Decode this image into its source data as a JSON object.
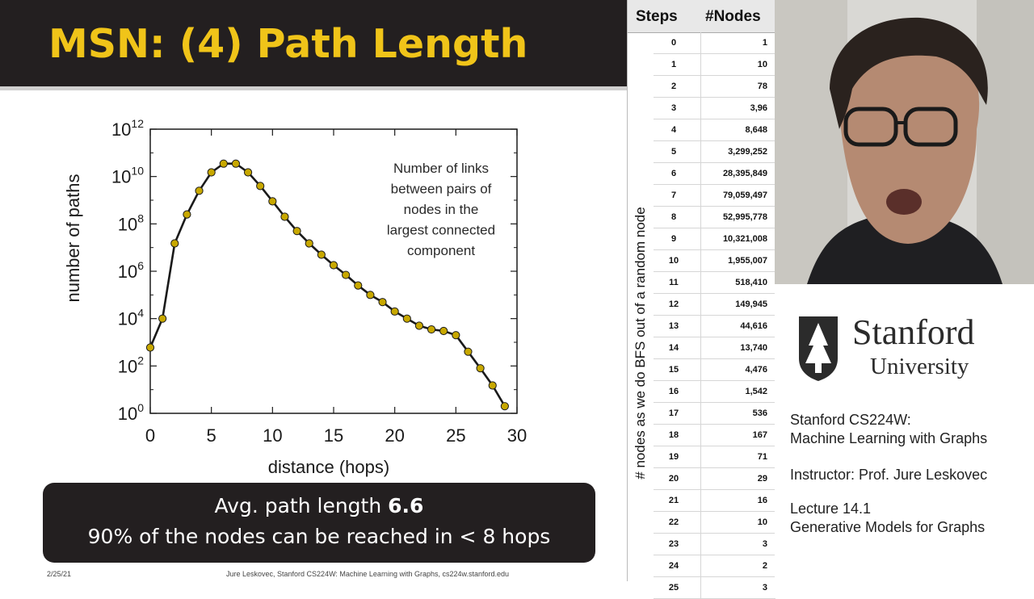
{
  "slide": {
    "title": "MSN: (4) Path Length",
    "callout": {
      "line1_prefix": "Avg. path length ",
      "line1_bold": "6.6",
      "line2": "90% of the nodes can be reached in < 8 hops"
    },
    "footer": {
      "date": "2/25/21",
      "credit": "Jure Leskovec, Stanford CS224W: Machine Learning with Graphs, cs224w.stanford.edu"
    }
  },
  "chart_data": {
    "type": "line",
    "title": "",
    "xlabel": "distance (hops)",
    "ylabel": "number of paths",
    "xlim": [
      0,
      30
    ],
    "ylim_exponent": [
      0,
      12
    ],
    "y_scale": "log10",
    "x_ticks": [
      "0",
      "5",
      "10",
      "15",
      "20",
      "25",
      "30"
    ],
    "y_tick_base": "10",
    "y_tick_exponents": [
      "0",
      "2",
      "4",
      "6",
      "8",
      "10",
      "12"
    ],
    "annotation": [
      "Number of links",
      "between pairs of",
      "nodes in the",
      "largest connected",
      "component"
    ],
    "marker_color": "#c8a800",
    "series": [
      {
        "x": [
          0,
          1,
          2,
          3,
          4,
          5,
          6,
          7,
          8,
          9,
          10,
          11,
          12,
          13,
          14,
          15,
          16,
          17,
          18,
          19,
          20,
          21,
          22,
          23,
          24,
          25,
          26,
          27,
          28,
          29
        ],
        "y": [
          600.0,
          10000.0,
          15000000.0,
          250000000.0,
          2500000000.0,
          15000000000.0,
          35000000000.0,
          35000000000.0,
          15000000000.0,
          4000000000.0,
          900000000.0,
          200000000.0,
          50000000.0,
          15000000.0,
          5000000.0,
          1800000.0,
          700000.0,
          250000.0,
          100000.0,
          50000.0,
          20000.0,
          10000.0,
          5000.0,
          3500.0,
          3000.0,
          2000.0,
          400.0,
          80.0,
          15.0,
          2
        ]
      }
    ]
  },
  "table": {
    "header_steps": "Steps",
    "header_nodes": "#Nodes",
    "side_label": "# nodes as we do BFS out of a random node",
    "rows": [
      {
        "step": "0",
        "nodes": "1"
      },
      {
        "step": "1",
        "nodes": "10"
      },
      {
        "step": "2",
        "nodes": "78"
      },
      {
        "step": "3",
        "nodes": "3,96"
      },
      {
        "step": "4",
        "nodes": "8,648"
      },
      {
        "step": "5",
        "nodes": "3,299,252"
      },
      {
        "step": "6",
        "nodes": "28,395,849"
      },
      {
        "step": "7",
        "nodes": "79,059,497"
      },
      {
        "step": "8",
        "nodes": "52,995,778"
      },
      {
        "step": "9",
        "nodes": "10,321,008"
      },
      {
        "step": "10",
        "nodes": "1,955,007"
      },
      {
        "step": "11",
        "nodes": "518,410"
      },
      {
        "step": "12",
        "nodes": "149,945"
      },
      {
        "step": "13",
        "nodes": "44,616"
      },
      {
        "step": "14",
        "nodes": "13,740"
      },
      {
        "step": "15",
        "nodes": "4,476"
      },
      {
        "step": "16",
        "nodes": "1,542"
      },
      {
        "step": "17",
        "nodes": "536"
      },
      {
        "step": "18",
        "nodes": "167"
      },
      {
        "step": "19",
        "nodes": "71"
      },
      {
        "step": "20",
        "nodes": "29"
      },
      {
        "step": "21",
        "nodes": "16"
      },
      {
        "step": "22",
        "nodes": "10"
      },
      {
        "step": "23",
        "nodes": "3"
      },
      {
        "step": "24",
        "nodes": "2"
      },
      {
        "step": "25",
        "nodes": "3"
      }
    ]
  },
  "right_panel": {
    "logo_title": "Stanford",
    "logo_sub": "University",
    "course_line1": "Stanford CS224W:",
    "course_line2": "Machine Learning with Graphs",
    "instructor": "Instructor: Prof. Jure Leskovec",
    "lecture_line1": "Lecture 14.1",
    "lecture_line2": "Generative Models for Graphs"
  }
}
